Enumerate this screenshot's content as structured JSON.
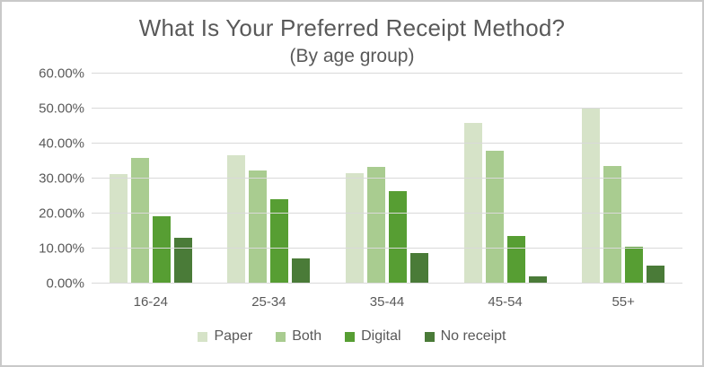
{
  "chart_data": {
    "type": "bar",
    "title": "What Is Your Preferred Receipt Method?",
    "subtitle": "(By age group)",
    "categories": [
      "16-24",
      "25-34",
      "35-44",
      "45-54",
      "55+"
    ],
    "series": [
      {
        "name": "Paper",
        "color": "#d6e3c8",
        "values": [
          31.4,
          36.7,
          31.5,
          45.9,
          50.2
        ]
      },
      {
        "name": "Both",
        "color": "#a9cc90",
        "values": [
          36.0,
          32.3,
          33.3,
          37.9,
          33.5
        ]
      },
      {
        "name": "Digital",
        "color": "#579e33",
        "values": [
          19.3,
          24.0,
          26.4,
          13.6,
          10.4
        ]
      },
      {
        "name": "No receipt",
        "color": "#4a7b38",
        "values": [
          13.0,
          7.2,
          8.7,
          2.1,
          5.2
        ]
      }
    ],
    "ylabel": "",
    "xlabel": "",
    "ylim": [
      0,
      60
    ],
    "ytick_step": 10,
    "ytick_labels": [
      "0.00%",
      "10.00%",
      "20.00%",
      "30.00%",
      "40.00%",
      "50.00%",
      "60.00%"
    ],
    "grid": true,
    "legend_position": "bottom"
  },
  "colors": {
    "text": "#595959",
    "gridline": "#d9d9d9",
    "background": "#ffffff",
    "frame_border": "#c9c9c9"
  }
}
